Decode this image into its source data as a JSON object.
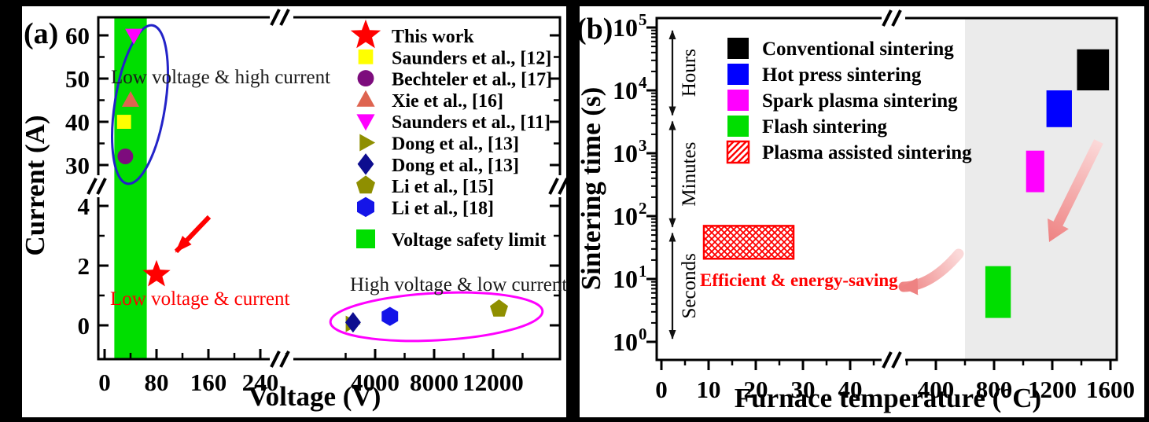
{
  "figure": {
    "panel_a_label": "(a)",
    "panel_b_label": "(b)",
    "background_color": "#000000"
  },
  "chart_data": [
    {
      "id": "a",
      "type": "scatter",
      "xlabel": "Voltage (V)",
      "ylabel": "Current (A)",
      "x_axis": {
        "scale": "broken-linear",
        "major_ticks": [
          0,
          80,
          160,
          240,
          4000,
          8000,
          12000
        ],
        "minor_ticks": [
          40,
          120,
          200,
          280,
          2000,
          6000,
          10000,
          14000
        ],
        "break_between": [
          280,
          1500
        ]
      },
      "y_axis": {
        "scale": "broken-linear",
        "upper_major_ticks": [
          60,
          50,
          40,
          30
        ],
        "upper_minor_ticks": [
          55,
          45,
          35
        ],
        "lower_major_ticks": [
          4,
          2,
          0
        ],
        "lower_minor_ticks": [
          3,
          1
        ],
        "break_between": [
          4.6,
          28
        ]
      },
      "safety_region": {
        "label": "Voltage safety limit",
        "color": "#00DE00",
        "v_range": [
          15,
          65
        ]
      },
      "series": [
        {
          "label": "This work",
          "marker": "star",
          "color": "#FF0000",
          "points": [
            [
              80,
              1.7
            ]
          ]
        },
        {
          "label": "Saunders et al., [12]",
          "marker": "square",
          "color": "#FFFF00",
          "points": [
            [
              30,
              40
            ]
          ]
        },
        {
          "label": "Bechteler et al., [17]",
          "marker": "circle",
          "color": "#7D0C7D",
          "points": [
            [
              32,
              32
            ]
          ]
        },
        {
          "label": "Xie et al., [16]",
          "marker": "triangle-up",
          "color": "#DE6450",
          "points": [
            [
              40,
              45
            ]
          ]
        },
        {
          "label": "Saunders et al., [11]",
          "marker": "triangle-down",
          "color": "#FF00FF",
          "points": [
            [
              45,
              60
            ]
          ]
        },
        {
          "label": "Dong et al., [13]",
          "marker": "triangle-right",
          "color": "#8F8F00",
          "points": [
            [
              2400,
              0.05
            ]
          ]
        },
        {
          "label": "Dong et al., [13]",
          "marker": "diamond",
          "color": "#0D0D8F",
          "points": [
            [
              2500,
              0.1
            ]
          ]
        },
        {
          "label": "Li et al., [15]",
          "marker": "pentagon",
          "color": "#8F8F00",
          "points": [
            [
              12400,
              0.55
            ]
          ]
        },
        {
          "label": "Li et al., [18]",
          "marker": "hexagon",
          "color": "#1414E8",
          "points": [
            [
              5000,
              0.3
            ]
          ]
        }
      ],
      "annotations": [
        {
          "text": "Low voltage & high current",
          "color": "#1a1a1a"
        },
        {
          "text": "Low voltage & current",
          "color": "#FF0000"
        },
        {
          "text": "High voltage & low current",
          "color": "#1a1a1a"
        }
      ],
      "ellipse_colors": {
        "high_current_group": "#2323C8",
        "low_current_group": "#FF00FF"
      },
      "arrow_color": "#FF0000"
    },
    {
      "id": "b",
      "type": "range-boxes",
      "xlabel": "Furnace temperature (°C)",
      "ylabel": "Sintering time (s)",
      "x_axis": {
        "scale": "broken-linear",
        "major_ticks": [
          0,
          10,
          20,
          30,
          40,
          400,
          800,
          1200,
          1600
        ],
        "minor_ticks": [
          5,
          15,
          25,
          35,
          45,
          200,
          600,
          1000,
          1400
        ],
        "break_between": [
          50,
          180
        ]
      },
      "y_axis": {
        "scale": "log",
        "decade_exponents": [
          5,
          4,
          3,
          2,
          1,
          0
        ]
      },
      "shaded_region": {
        "color": "#EBEBEB",
        "t_range": [
          600,
          1640
        ]
      },
      "series": [
        {
          "label": "Conventional sintering",
          "color": "#000000",
          "hatch": false,
          "temp_range": [
            1370,
            1590
          ],
          "time_range": [
            10000,
            45000
          ]
        },
        {
          "label": "Hot press sintering",
          "color": "#0000FF",
          "hatch": false,
          "temp_range": [
            1160,
            1335
          ],
          "time_range": [
            2600,
            10000
          ]
        },
        {
          "label": "Spark plasma sintering",
          "color": "#FF00FF",
          "hatch": false,
          "temp_range": [
            1020,
            1145
          ],
          "time_range": [
            240,
            1100
          ]
        },
        {
          "label": "Flash sintering",
          "color": "#00DE00",
          "hatch": false,
          "temp_range": [
            740,
            915
          ],
          "time_range": [
            2.4,
            16
          ]
        },
        {
          "label": "Plasma assisted sintering",
          "color": "#FF0000",
          "hatch": true,
          "temp_range": [
            9,
            28
          ],
          "time_range": [
            21,
            70
          ]
        }
      ],
      "time_scales": [
        {
          "label": "Hours",
          "span_seconds": [
            3600,
            100000
          ]
        },
        {
          "label": "Minutes",
          "span_seconds": [
            60,
            3600
          ]
        },
        {
          "label": "Seconds",
          "span_seconds": [
            1,
            60
          ]
        }
      ],
      "annotations": [
        {
          "text": "Efficient & energy-saving",
          "color": "#FF0000"
        }
      ],
      "trend_arrow_colors": {
        "light": "#FBD9D9",
        "dark": "#EE8282"
      }
    }
  ]
}
